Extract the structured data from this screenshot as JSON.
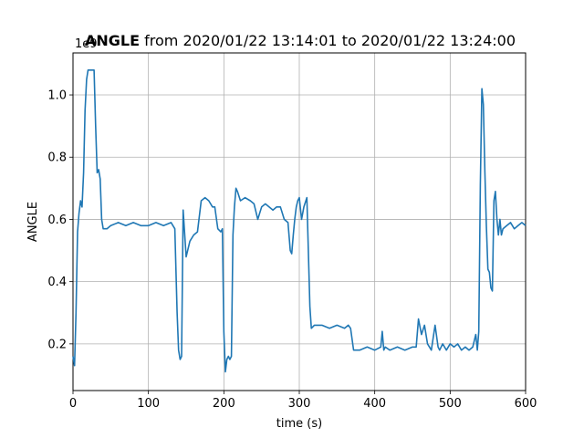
{
  "chart_data": {
    "type": "line",
    "title_bold": "ANGLE",
    "title_rest": " from 2020/01/22 13:14:01 to 2020/01/22 13:24:00",
    "xlabel": "time (s)",
    "ylabel": "ANGLE",
    "offset_text": "1e9",
    "xlim": [
      0,
      600
    ],
    "ylim": [
      0.05,
      1.135
    ],
    "x_ticks": [
      0,
      100,
      200,
      300,
      400,
      500,
      600
    ],
    "x_tick_labels": [
      "0",
      "100",
      "200",
      "300",
      "400",
      "500",
      "600"
    ],
    "y_ticks": [
      0.2,
      0.4,
      0.6,
      0.8,
      1.0
    ],
    "y_tick_labels": [
      "0.2",
      "0.4",
      "0.6",
      "0.8",
      "1.0"
    ],
    "grid": true,
    "line_color": "#1f77b4",
    "series": [
      {
        "x": [
          0,
          2,
          4,
          6,
          8,
          10,
          12,
          14,
          16,
          18,
          20,
          22,
          24,
          26,
          28,
          30,
          32,
          34,
          36,
          38,
          40,
          45,
          50,
          60,
          70,
          80,
          90,
          100,
          110,
          120,
          130,
          135,
          138,
          140,
          142,
          144,
          146,
          150,
          155,
          160,
          165,
          170,
          175,
          180,
          185,
          188,
          192,
          196,
          198,
          200,
          202,
          204,
          206,
          208,
          210,
          212,
          214,
          216,
          218,
          222,
          228,
          235,
          240,
          245,
          250,
          255,
          260,
          265,
          270,
          275,
          280,
          285,
          288,
          290,
          292,
          294,
          296,
          298,
          300,
          303,
          306,
          310,
          312,
          314,
          316,
          320,
          330,
          340,
          350,
          360,
          365,
          368,
          372,
          380,
          390,
          400,
          408,
          410,
          412,
          414,
          420,
          430,
          440,
          450,
          455,
          458,
          462,
          466,
          470,
          475,
          480,
          484,
          486,
          490,
          495,
          500,
          505,
          510,
          515,
          520,
          525,
          530,
          534,
          536,
          538,
          540,
          542,
          544,
          546,
          548,
          550,
          552,
          554,
          556,
          558,
          560,
          562,
          564,
          566,
          568,
          570,
          575,
          580,
          585,
          590,
          595,
          600
        ],
        "y": [
          0.16,
          0.13,
          0.3,
          0.56,
          0.62,
          0.66,
          0.64,
          0.75,
          0.95,
          1.05,
          1.08,
          1.08,
          1.08,
          1.08,
          1.08,
          0.9,
          0.75,
          0.76,
          0.73,
          0.6,
          0.57,
          0.57,
          0.58,
          0.59,
          0.58,
          0.59,
          0.58,
          0.58,
          0.59,
          0.58,
          0.59,
          0.57,
          0.3,
          0.18,
          0.15,
          0.16,
          0.63,
          0.48,
          0.53,
          0.55,
          0.56,
          0.66,
          0.67,
          0.66,
          0.64,
          0.64,
          0.57,
          0.56,
          0.57,
          0.24,
          0.11,
          0.15,
          0.16,
          0.15,
          0.16,
          0.55,
          0.64,
          0.7,
          0.69,
          0.66,
          0.67,
          0.66,
          0.65,
          0.6,
          0.64,
          0.65,
          0.64,
          0.63,
          0.64,
          0.64,
          0.6,
          0.59,
          0.5,
          0.49,
          0.55,
          0.6,
          0.64,
          0.66,
          0.67,
          0.6,
          0.64,
          0.67,
          0.5,
          0.32,
          0.25,
          0.26,
          0.26,
          0.25,
          0.26,
          0.25,
          0.26,
          0.25,
          0.18,
          0.18,
          0.19,
          0.18,
          0.19,
          0.24,
          0.18,
          0.19,
          0.18,
          0.19,
          0.18,
          0.19,
          0.19,
          0.28,
          0.23,
          0.26,
          0.2,
          0.18,
          0.26,
          0.19,
          0.18,
          0.2,
          0.18,
          0.2,
          0.19,
          0.2,
          0.18,
          0.19,
          0.18,
          0.19,
          0.23,
          0.18,
          0.24,
          0.71,
          1.02,
          0.97,
          0.75,
          0.58,
          0.44,
          0.43,
          0.38,
          0.37,
          0.66,
          0.69,
          0.6,
          0.55,
          0.6,
          0.55,
          0.57,
          0.58,
          0.59,
          0.57,
          0.58,
          0.59,
          0.58
        ]
      }
    ]
  }
}
